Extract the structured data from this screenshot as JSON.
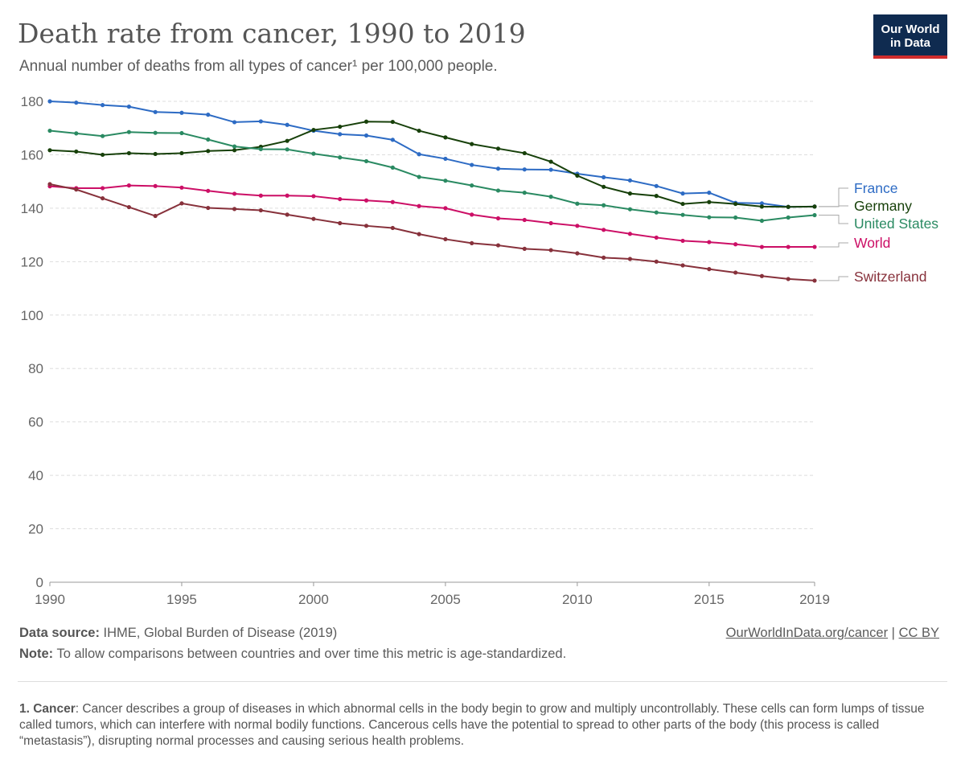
{
  "header": {
    "title": "Death rate from cancer, 1990 to 2019",
    "subtitle": "Annual number of deaths from all types of cancer¹ per 100,000 people.",
    "logo_line1": "Our World",
    "logo_line2": "in Data"
  },
  "chart_data": {
    "type": "line",
    "title": "Death rate from cancer, 1990 to 2019",
    "xlim": [
      1990,
      2019
    ],
    "ylim": [
      0,
      180
    ],
    "xticks": [
      1990,
      1995,
      2000,
      2005,
      2010,
      2015,
      2019
    ],
    "yticks": [
      0,
      20,
      40,
      60,
      80,
      100,
      120,
      140,
      160,
      180
    ],
    "grid": true,
    "legend": "right (line-end labels)",
    "x": [
      1990,
      1991,
      1992,
      1993,
      1994,
      1995,
      1996,
      1997,
      1998,
      1999,
      2000,
      2001,
      2002,
      2003,
      2004,
      2005,
      2006,
      2007,
      2008,
      2009,
      2010,
      2011,
      2012,
      2013,
      2014,
      2015,
      2016,
      2017,
      2018,
      2019
    ],
    "series": [
      {
        "name": "France",
        "color": "#2d6bc4",
        "values": [
          180,
          179.5,
          178.6,
          178,
          176,
          175.7,
          175,
          172.2,
          172.5,
          171.2,
          169,
          167.7,
          167.2,
          165.6,
          160.2,
          158.5,
          156.2,
          154.8,
          154.5,
          154.4,
          152.9,
          151.6,
          150.4,
          148.3,
          145.5,
          145.8,
          142,
          141.8,
          140.5,
          140.6
        ]
      },
      {
        "name": "Germany",
        "color": "#17400a",
        "values": [
          161.7,
          161.2,
          160,
          160.6,
          160.3,
          160.6,
          161.4,
          161.7,
          163,
          165.2,
          169.3,
          170.5,
          172.4,
          172.3,
          169,
          166.5,
          164,
          162.3,
          160.6,
          157.4,
          152.2,
          148,
          145.5,
          144.6,
          141.6,
          142.3,
          141.6,
          140.6,
          140.5,
          140.6
        ]
      },
      {
        "name": "United States",
        "color": "#2a8a62",
        "values": [
          169,
          168,
          167,
          168.5,
          168.2,
          168.1,
          165.7,
          163.1,
          162.1,
          162,
          160.4,
          159,
          157.6,
          155.2,
          151.7,
          150.3,
          148.5,
          146.6,
          145.8,
          144.3,
          141.7,
          141.1,
          139.6,
          138.4,
          137.5,
          136.6,
          136.5,
          135.3,
          136.5,
          137.4
        ]
      },
      {
        "name": "World",
        "color": "#cc0f66",
        "values": [
          148.2,
          147.5,
          147.5,
          148.5,
          148.3,
          147.7,
          146.5,
          145.4,
          144.7,
          144.7,
          144.5,
          143.4,
          142.9,
          142.3,
          140.8,
          140,
          137.6,
          136.2,
          135.6,
          134.4,
          133.4,
          131.9,
          130.4,
          129,
          127.8,
          127.3,
          126.5,
          125.5,
          125.5,
          125.5
        ]
      },
      {
        "name": "Switzerland",
        "color": "#87313b",
        "values": [
          149,
          147,
          143.7,
          140.4,
          137.1,
          141.8,
          140.1,
          139.7,
          139.2,
          137.6,
          136,
          134.4,
          133.4,
          132.6,
          130.3,
          128.4,
          126.9,
          126.1,
          124.8,
          124.3,
          123.1,
          121.5,
          121,
          120,
          118.6,
          117.2,
          115.9,
          114.6,
          113.5,
          112.9
        ]
      }
    ]
  },
  "footer": {
    "source_label": "Data source:",
    "source_text": " IHME, Global Burden of Disease (2019)",
    "note_label": "Note:",
    "note_text": " To allow comparisons between countries and over time this metric is age-standardized.",
    "link": "OurWorldInData.org/cancer",
    "sep": " | ",
    "license": "CC BY",
    "footnote_label": "1. Cancer",
    "footnote_text": ": Cancer describes a group of diseases in which abnormal cells in the body begin to grow and multiply uncontrollably. These cells can form lumps of tissue called tumors, which can interfere with normal bodily functions. Cancerous cells have the potential to spread to other parts of the body (this process is called “metastasis”), disrupting normal processes and causing serious health problems."
  }
}
